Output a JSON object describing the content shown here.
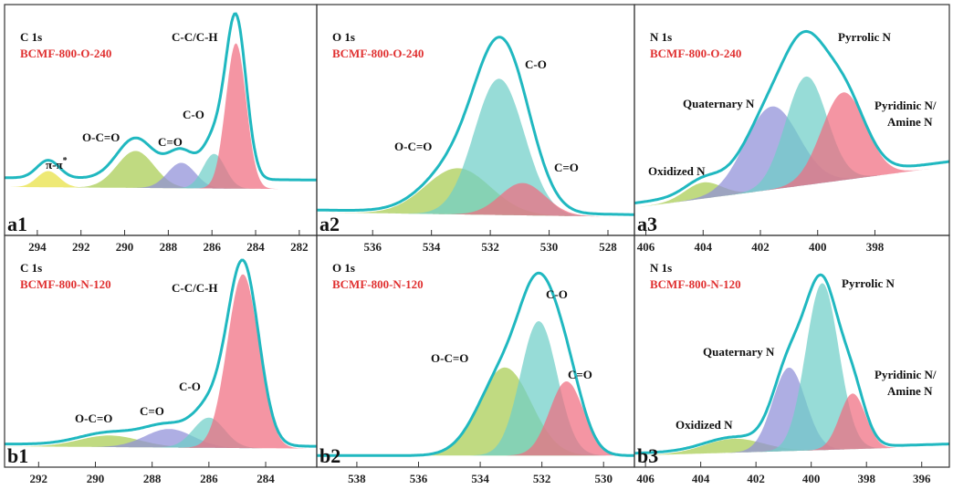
{
  "chart_data": [
    {
      "id": "a1",
      "type": "area",
      "panel_label": "a1",
      "core": "C 1s",
      "sample": "BCMF-800-O-240",
      "xlim": [
        295.5,
        281.2
      ],
      "ylim": [
        0,
        1
      ],
      "ticks": [
        294,
        292,
        290,
        288,
        286,
        284,
        282
      ],
      "baseline": [
        0.21,
        0.2
      ],
      "envelope_scale": 1.1,
      "envelope_offset": 0.04,
      "components": [
        {
          "name": "π-π*",
          "center": 293.5,
          "fwhm": 1.2,
          "height": 0.07,
          "color": "#e8e040"
        },
        {
          "name": "O-C=O",
          "center": 289.5,
          "fwhm": 2.0,
          "height": 0.16,
          "color": "#a8cc50"
        },
        {
          "name": "C=O",
          "center": 287.4,
          "fwhm": 1.5,
          "height": 0.11,
          "color": "#8f8fd8"
        },
        {
          "name": "C-O",
          "center": 285.9,
          "fwhm": 1.2,
          "height": 0.15,
          "color": "#6fcfc8"
        },
        {
          "name": "C-C/C-H",
          "center": 284.9,
          "fwhm": 1.1,
          "height": 0.63,
          "color": "#f06c80"
        }
      ]
    },
    {
      "id": "a2",
      "type": "area",
      "panel_label": "a2",
      "core": "O 1s",
      "sample": "BCMF-800-O-240",
      "xlim": [
        537.9,
        527.1
      ],
      "ylim": [
        0,
        1
      ],
      "ticks": [
        536,
        534,
        532,
        530,
        528
      ],
      "baseline": [
        0.1,
        0.08
      ],
      "envelope_scale": 1.0,
      "envelope_offset": 0.01,
      "components": [
        {
          "name": "O-C=O",
          "center": 533.1,
          "fwhm": 2.6,
          "height": 0.2,
          "color": "#a8cc50"
        },
        {
          "name": "C-O",
          "center": 531.7,
          "fwhm": 2.0,
          "height": 0.59,
          "color": "#6fcfc8"
        },
        {
          "name": "C=O",
          "center": 530.9,
          "fwhm": 1.8,
          "height": 0.14,
          "color": "#f06c80"
        }
      ]
    },
    {
      "id": "a3",
      "type": "area",
      "panel_label": "a3",
      "core": "N 1s",
      "sample": "BCMF-800-O-240",
      "xlim": [
        406.4,
        395.4
      ],
      "ylim": [
        0,
        1
      ],
      "ticks": [
        406,
        404,
        402,
        400,
        398
      ],
      "baseline": [
        0.12,
        0.3
      ],
      "envelope_scale": 0.9,
      "envelope_offset": 0.02,
      "components": [
        {
          "name": "Oxidized N",
          "center": 404.0,
          "fwhm": 1.5,
          "height": 0.07,
          "color": "#a8cc50"
        },
        {
          "name": "Quaternary N",
          "center": 401.6,
          "fwhm": 2.2,
          "height": 0.36,
          "color": "#8f8fd8"
        },
        {
          "name": "Pyrrolic N",
          "center": 400.4,
          "fwhm": 1.7,
          "height": 0.47,
          "color": "#6fcfc8"
        },
        {
          "name": "Pyridinic N/ Amine N",
          "center": 399.1,
          "fwhm": 1.8,
          "height": 0.38,
          "color": "#f06c80"
        }
      ]
    },
    {
      "id": "b1",
      "type": "area",
      "panel_label": "b1",
      "core": "C 1s",
      "sample": "BCMF-800-N-120",
      "xlim": [
        293.2,
        282.2
      ],
      "ylim": [
        0,
        1
      ],
      "ticks": [
        292,
        290,
        288,
        286,
        284
      ],
      "baseline": [
        0.09,
        0.08
      ],
      "envelope_scale": 1.05,
      "envelope_offset": 0.01,
      "components": [
        {
          "name": "O-C=O",
          "center": 289.5,
          "fwhm": 2.5,
          "height": 0.05,
          "color": "#a8cc50"
        },
        {
          "name": "C=O",
          "center": 287.4,
          "fwhm": 2.0,
          "height": 0.08,
          "color": "#8f8fd8"
        },
        {
          "name": "C-O",
          "center": 286.0,
          "fwhm": 1.3,
          "height": 0.13,
          "color": "#6fcfc8"
        },
        {
          "name": "C-C/C-H",
          "center": 284.8,
          "fwhm": 1.3,
          "height": 0.75,
          "color": "#f06c80"
        }
      ]
    },
    {
      "id": "b2",
      "type": "area",
      "panel_label": "b2",
      "core": "O 1s",
      "sample": "BCMF-800-N-120",
      "xlim": [
        539.3,
        529.0
      ],
      "ylim": [
        0,
        1
      ],
      "ticks": [
        538,
        536,
        534,
        532,
        530
      ],
      "baseline": [
        0.05,
        0.05
      ],
      "envelope_scale": 0.95,
      "envelope_offset": 0.0,
      "components": [
        {
          "name": "O-C=O",
          "center": 533.2,
          "fwhm": 2.0,
          "height": 0.38,
          "color": "#a8cc50"
        },
        {
          "name": "C-O",
          "center": 532.1,
          "fwhm": 1.4,
          "height": 0.58,
          "color": "#6fcfc8"
        },
        {
          "name": "C=O",
          "center": 531.2,
          "fwhm": 1.3,
          "height": 0.32,
          "color": "#f06c80"
        }
      ]
    },
    {
      "id": "b3",
      "type": "area",
      "panel_label": "b3",
      "core": "N 1s",
      "sample": "BCMF-800-N-120",
      "xlim": [
        406.4,
        395.0
      ],
      "ylim": [
        0,
        1
      ],
      "ticks": [
        406,
        404,
        402,
        400,
        398,
        396
      ],
      "baseline": [
        0.05,
        0.09
      ],
      "envelope_scale": 0.95,
      "envelope_offset": 0.01,
      "components": [
        {
          "name": "Oxidized N",
          "center": 402.8,
          "fwhm": 2.5,
          "height": 0.06,
          "color": "#a8cc50"
        },
        {
          "name": "Quaternary N",
          "center": 400.8,
          "fwhm": 1.4,
          "height": 0.36,
          "color": "#8f8fd8"
        },
        {
          "name": "Pyrrolic N",
          "center": 399.6,
          "fwhm": 1.4,
          "height": 0.72,
          "color": "#6fcfc8"
        },
        {
          "name": "Pyridinic N/ Amine N",
          "center": 398.5,
          "fwhm": 1.1,
          "height": 0.24,
          "color": "#f06c80"
        }
      ]
    }
  ],
  "envelope_color": "#20b8c0",
  "sample_color": "#e03030"
}
